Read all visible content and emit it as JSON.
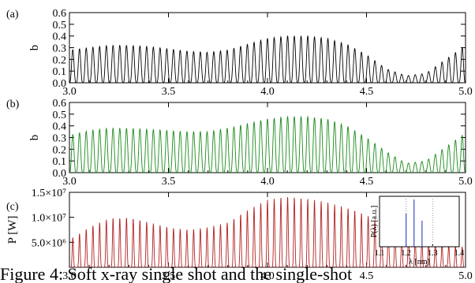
{
  "figure": {
    "caption_fragment": "Figure 4: Soft x-ray single shot and the single-shot"
  },
  "chart_data": [
    {
      "type": "line",
      "panel_label": "(a)",
      "xlabel": "",
      "ylabel": "b",
      "xlim": [
        3.0,
        5.0
      ],
      "ylim": [
        0.0,
        0.6
      ],
      "x_ticks": [
        "3.0",
        "3.5",
        "4.0",
        "4.5",
        "5.0"
      ],
      "y_ticks": [
        "0.0",
        "0.1",
        "0.2",
        "0.3",
        "0.4",
        "0.5",
        "0.6"
      ],
      "series": [
        {
          "color": "#000000",
          "description": "oscillating bunching factor, ~59 periods",
          "x": [
            3.0,
            3.1,
            3.2,
            3.3,
            3.4,
            3.5,
            3.6,
            3.7,
            3.8,
            3.9,
            4.0,
            4.1,
            4.2,
            4.3,
            4.4,
            4.5,
            4.6,
            4.7,
            4.8,
            4.9,
            5.0
          ],
          "peak_envelope": [
            0.28,
            0.3,
            0.32,
            0.32,
            0.31,
            0.29,
            0.27,
            0.26,
            0.28,
            0.33,
            0.38,
            0.4,
            0.4,
            0.38,
            0.33,
            0.24,
            0.12,
            0.06,
            0.08,
            0.2,
            0.32
          ]
        }
      ]
    },
    {
      "type": "line",
      "panel_label": "(b)",
      "xlabel": "",
      "ylabel": "b",
      "xlim": [
        3.0,
        5.0
      ],
      "ylim": [
        0.0,
        0.6
      ],
      "x_ticks": [
        "3.0",
        "3.5",
        "4.0",
        "4.5",
        "5.0"
      ],
      "y_ticks": [
        "0.0",
        "0.1",
        "0.2",
        "0.3",
        "0.4",
        "0.5",
        "0.6"
      ],
      "series": [
        {
          "color": "#1a8a1a",
          "description": "oscillating bunching factor, ~59 periods",
          "x": [
            3.0,
            3.1,
            3.2,
            3.3,
            3.4,
            3.5,
            3.6,
            3.7,
            3.8,
            3.9,
            4.0,
            4.1,
            4.2,
            4.3,
            4.4,
            4.5,
            4.6,
            4.7,
            4.8,
            4.9,
            5.0
          ],
          "peak_envelope": [
            0.32,
            0.36,
            0.38,
            0.38,
            0.37,
            0.36,
            0.35,
            0.35,
            0.38,
            0.42,
            0.46,
            0.48,
            0.48,
            0.46,
            0.4,
            0.3,
            0.18,
            0.08,
            0.1,
            0.22,
            0.34
          ]
        }
      ]
    },
    {
      "type": "line",
      "panel_label": "(c)",
      "xlabel": "",
      "ylabel": "P [W]",
      "xlim": [
        3.0,
        5.0
      ],
      "ylim": [
        0,
        15000000
      ],
      "x_ticks": [
        "3.0",
        "3.5",
        "4.0",
        "4.5",
        "5.0"
      ],
      "y_ticks": [
        "5.0×10⁶",
        "1.0×10⁷",
        "1.5×10⁷"
      ],
      "series": [
        {
          "color": "#b22222",
          "description": "pulse train of power spikes",
          "x": [
            3.0,
            3.1,
            3.2,
            3.3,
            3.4,
            3.5,
            3.6,
            3.7,
            3.8,
            3.9,
            4.0,
            4.1,
            4.2,
            4.3,
            4.4,
            4.5,
            4.6,
            4.7,
            4.8,
            4.9,
            5.0
          ],
          "peak_envelope": [
            5500000,
            8000000,
            9800000,
            10000000,
            9000000,
            8000000,
            7500000,
            8000000,
            9000000,
            11500000,
            13500000,
            14200000,
            13800000,
            13000000,
            12000000,
            10500000,
            8000000,
            6000000,
            5000000,
            4500000,
            4000000
          ]
        }
      ],
      "inset": {
        "type": "line",
        "xlabel": "λ [nm]",
        "ylabel": "P(λ) [a.u.]",
        "xlim": [
          1.1,
          1.4
        ],
        "x_ticks": [
          "1.1",
          "1.2",
          "1.3",
          "1.4"
        ],
        "color": "#3b4fc4",
        "peaks": [
          {
            "x": 1.2,
            "y": 0.7
          },
          {
            "x": 1.23,
            "y": 1.0
          },
          {
            "x": 1.26,
            "y": 0.55
          }
        ]
      }
    }
  ]
}
